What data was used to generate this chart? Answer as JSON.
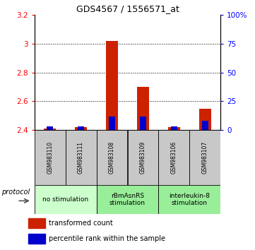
{
  "title": "GDS4567 / 1556571_at",
  "samples": [
    "GSM983110",
    "GSM983111",
    "GSM983108",
    "GSM983109",
    "GSM983106",
    "GSM983107"
  ],
  "transformed_counts": [
    2.41,
    2.42,
    3.02,
    2.7,
    2.42,
    2.55
  ],
  "percentile_ranks": [
    3,
    3,
    12,
    12,
    3,
    8
  ],
  "ylim_left": [
    2.4,
    3.2
  ],
  "ylim_right": [
    0,
    100
  ],
  "left_ticks": [
    2.4,
    2.6,
    2.8,
    3.0,
    3.2
  ],
  "right_ticks": [
    0,
    25,
    50,
    75,
    100
  ],
  "left_tick_labels": [
    "2.4",
    "2.6",
    "2.8",
    "3",
    "3.2"
  ],
  "right_tick_labels": [
    "0",
    "25",
    "50",
    "75",
    "100%"
  ],
  "groups": [
    {
      "label": "no stimulation",
      "start": 0,
      "end": 2
    },
    {
      "label": "rBmAsnRS\nstimulation",
      "start": 2,
      "end": 4
    },
    {
      "label": "interleukin-8\nstimulation",
      "start": 4,
      "end": 6
    }
  ],
  "group_colors": [
    "#ccffcc",
    "#99ee99",
    "#99ee99"
  ],
  "bar_width": 0.4,
  "red_color": "#cc2200",
  "blue_color": "#0000cc",
  "baseline": 2.4,
  "legend_red": "transformed count",
  "legend_blue": "percentile rank within the sample",
  "protocol_label": "protocol",
  "sample_box_color": "#c8c8c8",
  "title_fontsize": 9,
  "tick_fontsize": 7.5,
  "sample_fontsize": 5.5,
  "group_fontsize": 6.5,
  "legend_fontsize": 7
}
